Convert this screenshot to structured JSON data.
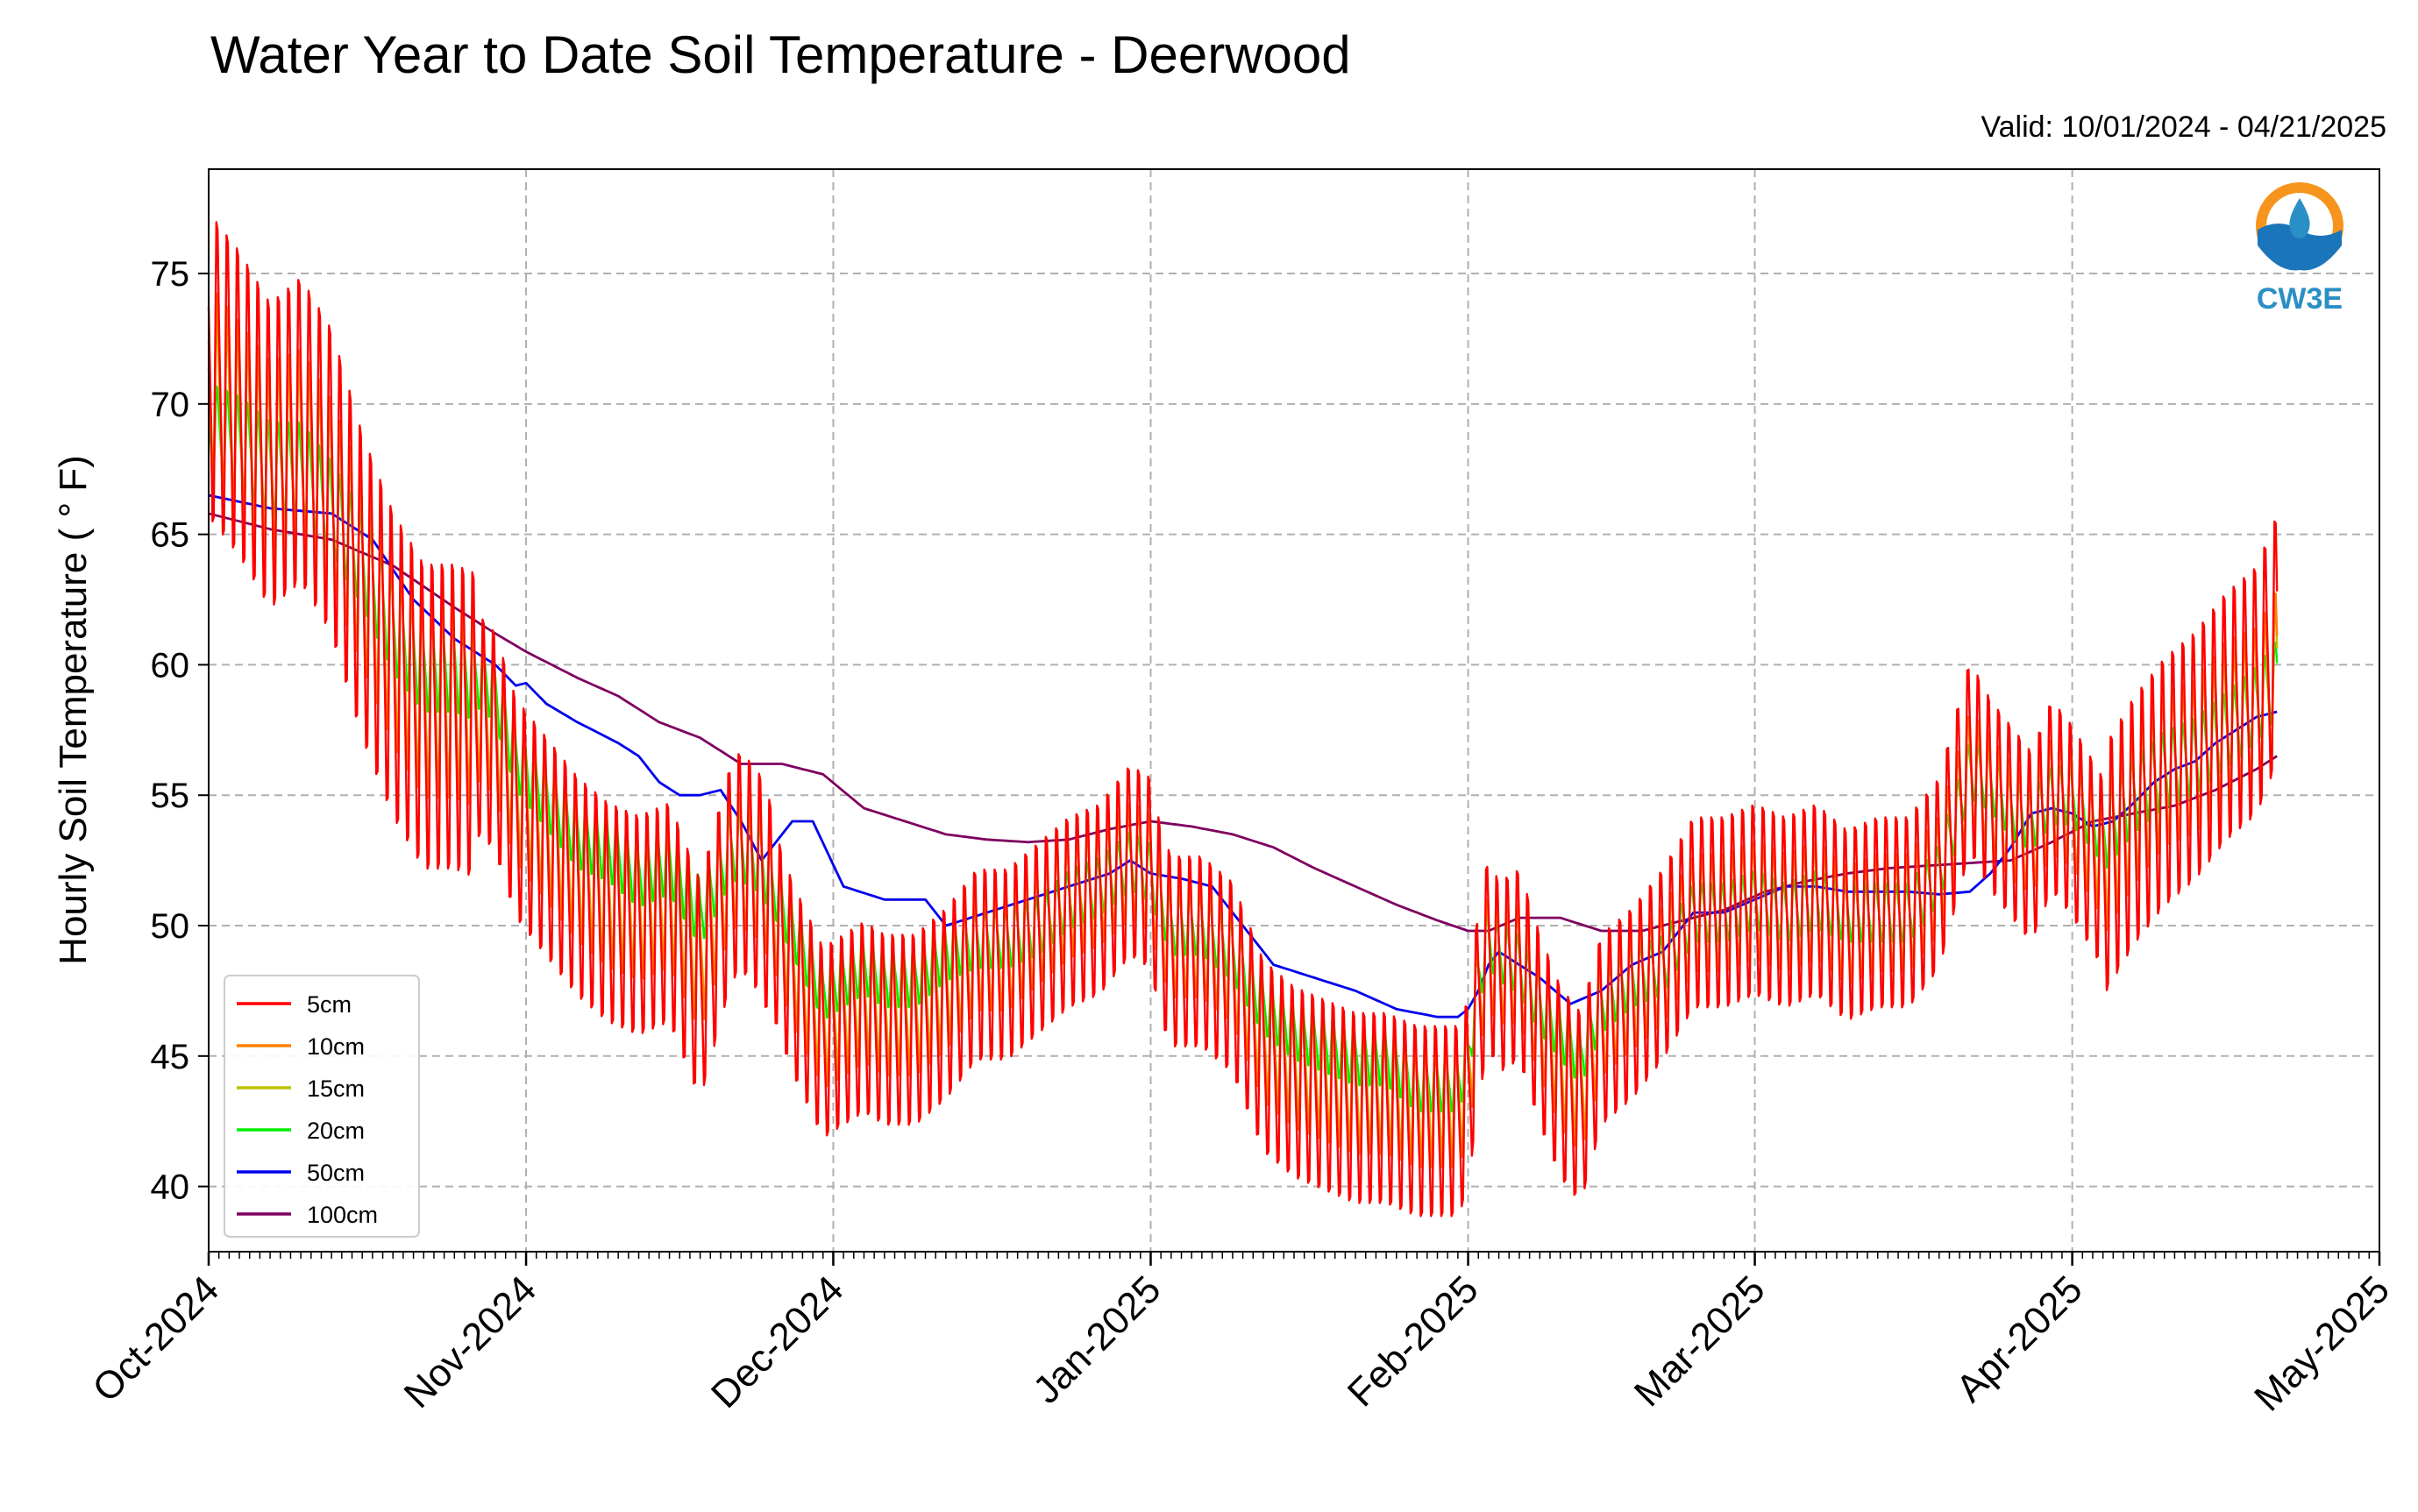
{
  "chart_data": {
    "type": "line",
    "title": "Water Year to Date Soil Temperature - Deerwood",
    "subtitle": "Valid: 10/01/2024 - 04/21/2025",
    "xlabel": "",
    "ylabel": "Hourly Soil Temperature ($^\\circ$F)",
    "ylabel_text": "Hourly Soil Temperature ( ° F)",
    "ylim": [
      37.5,
      79
    ],
    "xlim_days": [
      0,
      212
    ],
    "x_tick_labels": [
      "Oct-2024",
      "Nov-2024",
      "Dec-2024",
      "Jan-2025",
      "Feb-2025",
      "Mar-2025",
      "Apr-2025",
      "May-2025"
    ],
    "x_tick_days": [
      0,
      31,
      61,
      92,
      123,
      151,
      182,
      212
    ],
    "y_ticks": [
      40,
      45,
      50,
      55,
      60,
      65,
      70,
      75
    ],
    "y_tick_labels": [
      "40",
      "45",
      "50",
      "55",
      "60",
      "65",
      "70",
      "75"
    ],
    "grid": true,
    "legend_position": "lower-left",
    "logo_text": "CW3E",
    "series": [
      {
        "name": "5cm",
        "color": "#ff0000",
        "daily_amplitude": "strong",
        "x": [
          0,
          3,
          6,
          9,
          12,
          15,
          18,
          21,
          24,
          27,
          28,
          30,
          33,
          36,
          39,
          42,
          45,
          48,
          51,
          52,
          54,
          57,
          60,
          62,
          64,
          66,
          69,
          72,
          75,
          78,
          81,
          84,
          87,
          90,
          92,
          93,
          94,
          97,
          100,
          103,
          106,
          109,
          112,
          115,
          118,
          121,
          122,
          123,
          124,
          125,
          126,
          128,
          130,
          132,
          134,
          136,
          139,
          142,
          145,
          148,
          151,
          154,
          157,
          160,
          163,
          166,
          169,
          172,
          174,
          176,
          178,
          180,
          182,
          185,
          188,
          191,
          194,
          197,
          200,
          202
        ],
        "values": [
          71.5,
          70,
          68,
          69,
          67,
          63,
          60,
          58,
          58,
          57.5,
          57,
          54.5,
          53,
          51.5,
          50.5,
          50,
          50.5,
          47.5,
          52,
          52.5,
          51.5,
          48,
          45.5,
          46,
          46.5,
          46,
          46,
          47,
          48.5,
          48.5,
          49.5,
          50.5,
          51,
          52.5,
          52,
          50,
          49,
          49,
          48,
          45,
          44,
          43.5,
          43,
          43,
          42.5,
          42.5,
          42.5,
          43.5,
          47,
          49,
          48,
          48.5,
          46,
          44,
          43,
          46,
          47,
          48.5,
          50.5,
          50.5,
          51,
          50.5,
          51,
          50,
          50.5,
          50.5,
          52,
          56.5,
          55,
          54,
          53,
          55,
          54,
          52,
          54,
          55.5,
          56.5,
          58,
          59,
          61
        ]
      },
      {
        "name": "10cm",
        "color": "#ff8000",
        "daily_amplitude": "moderate",
        "x": [
          0,
          3,
          6,
          9,
          12,
          15,
          18,
          21,
          24,
          27,
          28,
          30,
          33,
          36,
          39,
          42,
          45,
          48,
          51,
          52,
          54,
          57,
          60,
          62,
          64,
          66,
          69,
          72,
          75,
          78,
          81,
          84,
          87,
          90,
          92,
          93,
          94,
          97,
          100,
          103,
          106,
          109,
          112,
          115,
          118,
          121,
          122,
          123,
          124,
          125,
          126,
          128,
          130,
          132,
          134,
          136,
          139,
          142,
          145,
          148,
          151,
          154,
          157,
          160,
          163,
          166,
          169,
          172,
          174,
          176,
          178,
          180,
          182,
          185,
          188,
          191,
          194,
          197,
          200,
          202
        ],
        "values": [
          71,
          69.5,
          68,
          68.5,
          66.5,
          63.5,
          60.5,
          58.5,
          58.5,
          58,
          57.5,
          55,
          53.5,
          52,
          51,
          50.5,
          51,
          48.5,
          52.5,
          52.5,
          52,
          48.5,
          46,
          46.5,
          47,
          46.5,
          46.5,
          47.5,
          49,
          49,
          50,
          51,
          51.5,
          52.5,
          52,
          50.5,
          49.5,
          49.5,
          48.5,
          45.5,
          44.5,
          44,
          43.5,
          43.5,
          43,
          43,
          43,
          44,
          47.5,
          49,
          48.5,
          48.5,
          46.5,
          44.5,
          43.5,
          46.5,
          47.5,
          48.5,
          50.5,
          50.5,
          51,
          50.5,
          51,
          50,
          50.5,
          50.5,
          52,
          56,
          55,
          54,
          53.5,
          55,
          54.5,
          52.5,
          54.5,
          56,
          56.5,
          58,
          58.5,
          60
        ]
      },
      {
        "name": "15cm",
        "color": "#bfbf00",
        "daily_amplitude": "moderate",
        "x": [
          0,
          3,
          6,
          9,
          12,
          15,
          18,
          21,
          24,
          27,
          28,
          30,
          33,
          36,
          39,
          42,
          45,
          48,
          51,
          52,
          54,
          57,
          60,
          62,
          64,
          66,
          69,
          72,
          75,
          78,
          81,
          84,
          87,
          90,
          92,
          93,
          94,
          97,
          100,
          103,
          106,
          109,
          112,
          115,
          118,
          121,
          122,
          123,
          124,
          125,
          126,
          128,
          130,
          132,
          134,
          136,
          139,
          142,
          145,
          148,
          151,
          154,
          157,
          160,
          163,
          166,
          169,
          172,
          174,
          176,
          178,
          180,
          182,
          185,
          188,
          191,
          194,
          197,
          200,
          202
        ],
        "values": [
          70,
          69,
          67.5,
          68,
          66.5,
          63.5,
          61,
          59,
          59,
          58.5,
          58,
          55.5,
          54,
          52.5,
          51.5,
          51,
          51.5,
          49,
          52.5,
          52.5,
          52,
          49,
          46.5,
          47,
          47.5,
          47,
          47,
          48,
          49,
          49,
          50,
          51,
          51.5,
          52.5,
          52,
          50.5,
          49.5,
          49.5,
          48.5,
          46,
          45,
          44.5,
          44,
          44,
          43.5,
          43.5,
          43.5,
          44.5,
          47.5,
          49,
          48.5,
          48.5,
          46.5,
          45,
          44,
          46.5,
          47.5,
          48.5,
          50.5,
          50.5,
          51,
          50.5,
          51,
          50,
          50.5,
          50.5,
          52,
          56,
          55,
          54,
          53.5,
          55,
          54.5,
          53,
          54.5,
          56,
          56.5,
          57.5,
          58.5,
          59.5
        ]
      },
      {
        "name": "20cm",
        "color": "#00ee00",
        "daily_amplitude": "weak",
        "x": [
          0,
          3,
          6,
          9,
          12,
          15,
          18,
          21,
          24,
          27,
          28,
          30,
          33,
          36,
          39,
          42,
          45,
          48,
          51,
          52,
          54,
          57,
          60,
          62,
          64,
          66,
          69,
          72,
          75,
          78,
          81,
          84,
          87,
          90,
          92,
          93,
          94,
          97,
          100,
          103,
          106,
          109,
          112,
          115,
          118,
          121,
          122,
          123,
          124,
          125,
          126,
          128,
          130,
          132,
          134,
          136,
          139,
          142,
          145,
          148,
          151,
          154,
          157,
          160,
          163,
          166,
          169,
          172,
          174,
          176,
          178,
          180,
          182,
          185,
          188,
          191,
          194,
          197,
          200,
          202
        ],
        "values": [
          69,
          68.5,
          67.5,
          67.5,
          66,
          64,
          61.5,
          60,
          60,
          59.5,
          59,
          56.5,
          55,
          53.5,
          53,
          52,
          52.5,
          50.5,
          53,
          53,
          52.5,
          50,
          47.5,
          48,
          48.5,
          48,
          48,
          49,
          49.5,
          49.5,
          50,
          51,
          51.5,
          52.5,
          52,
          51,
          50,
          50,
          49,
          47,
          46,
          45.5,
          45,
          45,
          44,
          44,
          44,
          45,
          48,
          49.5,
          49,
          48.5,
          47,
          46,
          45,
          47,
          48,
          48.5,
          50.5,
          50.5,
          51,
          50.5,
          51,
          50.5,
          50.5,
          50.5,
          52,
          56,
          55.5,
          54.5,
          54,
          55,
          55,
          53.5,
          55,
          56,
          56.5,
          57.5,
          58.5,
          59.5
        ]
      },
      {
        "name": "50cm",
        "color": "#0000ee",
        "daily_amplitude": "none",
        "x": [
          0,
          6,
          12,
          16,
          20,
          24,
          28,
          30,
          31,
          33,
          36,
          40,
          42,
          44,
          46,
          48,
          50,
          52,
          54,
          57,
          59,
          62,
          66,
          70,
          72,
          76,
          80,
          84,
          88,
          90,
          92,
          95,
          98,
          101,
          104,
          108,
          112,
          116,
          120,
          122,
          123,
          124,
          125,
          126,
          128,
          130,
          133,
          136,
          139,
          142,
          145,
          148,
          151,
          154,
          157,
          160,
          163,
          166,
          169,
          172,
          174,
          176,
          178,
          180,
          182,
          184,
          186,
          188,
          190,
          192,
          194,
          196,
          198,
          200,
          202
        ],
        "values": [
          66.5,
          66,
          65.8,
          64.8,
          62.5,
          61,
          60,
          59.2,
          59.3,
          58.5,
          57.8,
          57,
          56.5,
          55.5,
          55,
          55,
          55.2,
          54,
          52.5,
          54,
          54,
          51.5,
          51,
          51,
          50,
          50.5,
          51,
          51.5,
          52,
          52.5,
          52,
          51.8,
          51.5,
          50,
          48.5,
          48,
          47.5,
          46.8,
          46.5,
          46.5,
          46.8,
          47.5,
          48.5,
          49,
          48.5,
          48,
          47,
          47.5,
          48.5,
          49,
          50.5,
          50.5,
          51,
          51.5,
          51.5,
          51.3,
          51.3,
          51.3,
          51.2,
          51.3,
          52,
          53,
          54.3,
          54.5,
          54.3,
          53.8,
          54,
          54.7,
          55.5,
          56,
          56.3,
          57,
          57.5,
          58,
          58.2
        ]
      },
      {
        "name": "100cm",
        "color": "#7f0060",
        "daily_amplitude": "none",
        "x": [
          0,
          6,
          12,
          18,
          24,
          28,
          31,
          36,
          40,
          44,
          48,
          52,
          56,
          60,
          64,
          68,
          72,
          76,
          80,
          84,
          88,
          92,
          96,
          100,
          104,
          108,
          112,
          116,
          120,
          123,
          125,
          128,
          132,
          136,
          140,
          144,
          148,
          152,
          156,
          160,
          164,
          168,
          172,
          176,
          180,
          184,
          188,
          192,
          196,
          200,
          202
        ],
        "values": [
          65.8,
          65.2,
          64.8,
          63.8,
          62.2,
          61.2,
          60.5,
          59.5,
          58.8,
          57.8,
          57.2,
          56.2,
          56.2,
          55.8,
          54.5,
          54,
          53.5,
          53.3,
          53.2,
          53.3,
          53.7,
          54,
          53.8,
          53.5,
          53,
          52.2,
          51.5,
          50.8,
          50.2,
          49.8,
          49.8,
          50.3,
          50.3,
          49.8,
          49.8,
          50.2,
          50.6,
          51.3,
          51.7,
          52,
          52.2,
          52.3,
          52.4,
          52.5,
          53.2,
          54,
          54.3,
          54.6,
          55.2,
          56,
          56.5
        ]
      }
    ]
  }
}
